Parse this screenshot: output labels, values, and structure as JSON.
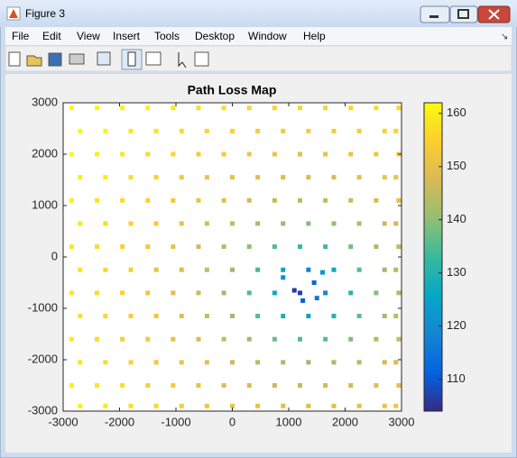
{
  "window": {
    "title": "Figure 3",
    "menu": [
      "File",
      "Edit",
      "View",
      "Insert",
      "Tools",
      "Desktop",
      "Window",
      "Help"
    ]
  },
  "chart_data": {
    "type": "scatter",
    "title": "Path Loss Map",
    "x": [
      -2850,
      -2400,
      -1950,
      -1500,
      -1050,
      -600,
      -150,
      300,
      750,
      1200,
      1650,
      2100,
      2550,
      2950,
      -2700,
      -2250,
      -1800,
      -1350,
      -900,
      -450,
      0,
      450,
      900,
      1350,
      1800,
      2250,
      2700,
      2900,
      -2850,
      -2400,
      -1950,
      -1500,
      -1050,
      -600,
      -150,
      300,
      750,
      1200,
      1650,
      2100,
      2550,
      2950,
      -2700,
      -2250,
      -1800,
      -1350,
      -900,
      -450,
      0,
      450,
      900,
      1350,
      1800,
      2250,
      2700,
      2900,
      -2850,
      -2400,
      -1950,
      -1500,
      -1050,
      -600,
      -150,
      300,
      750,
      1200,
      1650,
      2100,
      2550,
      2950,
      -2700,
      -2250,
      -1800,
      -1350,
      -900,
      -450,
      0,
      450,
      900,
      1350,
      1800,
      2250,
      2700,
      2900,
      -2850,
      -2400,
      -1950,
      -1500,
      -1050,
      -600,
      -150,
      300,
      750,
      1200,
      1650,
      2100,
      2550,
      2950,
      -2700,
      -2250,
      -1800,
      -1350,
      -900,
      -450,
      0,
      450,
      900,
      1350,
      1800,
      2250,
      2700,
      2900,
      -2850,
      -2400,
      -1950,
      -1500,
      -1050,
      -600,
      -150,
      300,
      750,
      1200,
      1650,
      2100,
      2550,
      2950,
      -2700,
      -2250,
      -1800,
      -1350,
      -900,
      -450,
      0,
      450,
      900,
      1350,
      1800,
      2250,
      2700,
      2900,
      -2850,
      -2400,
      -1950,
      -1500,
      -1050,
      -600,
      -150,
      300,
      750,
      1200,
      1650,
      2100,
      2550,
      2950,
      -2700,
      -2250,
      -1800,
      -1350,
      -900,
      -450,
      0,
      450,
      900,
      1350,
      1800,
      2250,
      2700,
      2900,
      -2850,
      -2400,
      -1950,
      -1500,
      -1050,
      -600,
      -150,
      300,
      750,
      1200,
      1650,
      2100,
      2550,
      2950,
      -2700,
      -2250,
      -1800,
      -1350,
      -900,
      -450,
      0,
      450,
      900,
      1350,
      1800,
      2250,
      2700,
      2900,
      1100,
      1450,
      1250,
      1500,
      900,
      1600
    ],
    "y": [
      2900,
      2900,
      2900,
      2900,
      2900,
      2900,
      2900,
      2900,
      2900,
      2900,
      2900,
      2900,
      2900,
      2900,
      2450,
      2450,
      2450,
      2450,
      2450,
      2450,
      2450,
      2450,
      2450,
      2450,
      2450,
      2450,
      2450,
      2450,
      2000,
      2000,
      2000,
      2000,
      2000,
      2000,
      2000,
      2000,
      2000,
      2000,
      2000,
      2000,
      2000,
      2000,
      1550,
      1550,
      1550,
      1550,
      1550,
      1550,
      1550,
      1550,
      1550,
      1550,
      1550,
      1550,
      1550,
      1550,
      1100,
      1100,
      1100,
      1100,
      1100,
      1100,
      1100,
      1100,
      1100,
      1100,
      1100,
      1100,
      1100,
      1100,
      650,
      650,
      650,
      650,
      650,
      650,
      650,
      650,
      650,
      650,
      650,
      650,
      650,
      650,
      200,
      200,
      200,
      200,
      200,
      200,
      200,
      200,
      200,
      200,
      200,
      200,
      200,
      200,
      -250,
      -250,
      -250,
      -250,
      -250,
      -250,
      -250,
      -250,
      -250,
      -250,
      -250,
      -250,
      -250,
      -250,
      -700,
      -700,
      -700,
      -700,
      -700,
      -700,
      -700,
      -700,
      -700,
      -700,
      -700,
      -700,
      -700,
      -700,
      -1150,
      -1150,
      -1150,
      -1150,
      -1150,
      -1150,
      -1150,
      -1150,
      -1150,
      -1150,
      -1150,
      -1150,
      -1150,
      -1150,
      -1600,
      -1600,
      -1600,
      -1600,
      -1600,
      -1600,
      -1600,
      -1600,
      -1600,
      -1600,
      -1600,
      -1600,
      -1600,
      -1600,
      -2050,
      -2050,
      -2050,
      -2050,
      -2050,
      -2050,
      -2050,
      -2050,
      -2050,
      -2050,
      -2050,
      -2050,
      -2050,
      -2050,
      -2500,
      -2500,
      -2500,
      -2500,
      -2500,
      -2500,
      -2500,
      -2500,
      -2500,
      -2500,
      -2500,
      -2500,
      -2500,
      -2500,
      -2900,
      -2900,
      -2900,
      -2900,
      -2900,
      -2900,
      -2900,
      -2900,
      -2900,
      -2900,
      -2900,
      -2900,
      -2900,
      -2900,
      -650,
      -500,
      -850,
      -800,
      -400,
      -300
    ],
    "c": [
      162,
      162,
      161,
      160,
      159,
      158,
      157,
      156,
      156,
      156,
      156,
      156,
      157,
      157,
      162,
      161,
      159,
      158,
      157,
      156,
      155,
      154,
      153,
      153,
      153,
      154,
      155,
      155,
      162,
      160,
      159,
      157,
      156,
      154,
      153,
      152,
      151,
      150,
      151,
      151,
      152,
      153,
      160,
      159,
      157,
      155,
      153,
      151,
      150,
      149,
      148,
      148,
      148,
      149,
      151,
      151,
      160,
      158,
      157,
      155,
      153,
      151,
      149,
      147,
      145,
      144,
      145,
      146,
      148,
      150,
      159,
      157,
      155,
      153,
      150,
      148,
      145,
      142,
      140,
      139,
      140,
      143,
      146,
      147,
      159,
      157,
      155,
      153,
      150,
      147,
      143,
      140,
      135,
      133,
      134,
      138,
      142,
      145,
      158,
      156,
      154,
      151,
      149,
      145,
      141,
      134,
      125,
      118,
      127,
      135,
      141,
      143,
      159,
      157,
      155,
      152,
      149,
      146,
      141,
      135,
      126,
      107,
      118,
      131,
      139,
      143,
      158,
      156,
      154,
      152,
      149,
      146,
      141,
      135,
      129,
      126,
      130,
      136,
      142,
      144,
      159,
      157,
      155,
      153,
      150,
      148,
      145,
      141,
      137,
      135,
      136,
      139,
      143,
      146,
      159,
      157,
      155,
      153,
      151,
      149,
      146,
      144,
      142,
      141,
      142,
      144,
      147,
      148,
      160,
      159,
      157,
      155,
      153,
      151,
      149,
      148,
      146,
      145,
      146,
      147,
      149,
      150,
      160,
      159,
      157,
      156,
      154,
      152,
      151,
      150,
      149,
      149,
      149,
      150,
      151,
      152,
      106,
      112,
      111,
      116,
      120,
      122
    ],
    "xlim": [
      -3000,
      3000
    ],
    "ylim": [
      -3000,
      3000
    ],
    "xticks": [
      -3000,
      -2000,
      -1000,
      0,
      1000,
      2000,
      3000
    ],
    "yticks": [
      -3000,
      -2000,
      -1000,
      0,
      1000,
      2000,
      3000
    ],
    "colorbar": {
      "clim": [
        104,
        162
      ],
      "ticks": [
        110,
        120,
        130,
        140,
        150,
        160
      ]
    },
    "colormap": [
      "#352a87",
      "#0363e1",
      "#1485d4",
      "#06a7c6",
      "#38b99e",
      "#92bf73",
      "#d9ba56",
      "#fcce2e",
      "#f9fb0e"
    ]
  }
}
